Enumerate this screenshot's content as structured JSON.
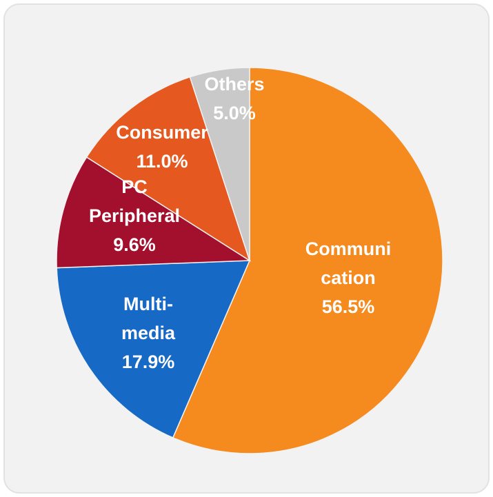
{
  "chart_data": {
    "type": "pie",
    "categories": [
      "Communi\ncation",
      "Multi-\nmedia",
      "PC\nPeripheral",
      "Consumer",
      "Others"
    ],
    "values": [
      56.5,
      17.9,
      9.6,
      11.0,
      5.0
    ],
    "value_labels": [
      "56.5%",
      "17.9%",
      "9.6%",
      "11.0%",
      "5.0%"
    ],
    "colors": [
      "#f58a1f",
      "#1669c4",
      "#a3102e",
      "#e5581f",
      "#c9c9c9"
    ]
  }
}
